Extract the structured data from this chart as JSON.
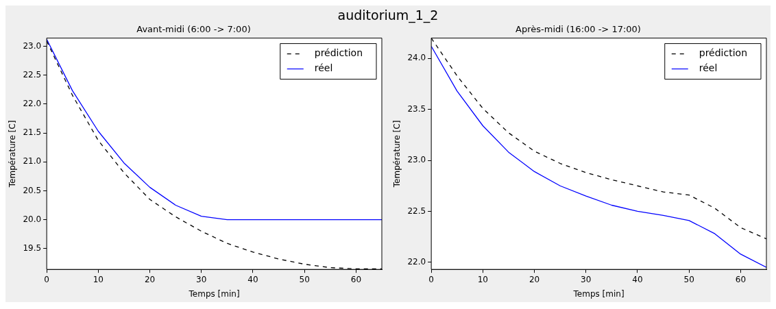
{
  "chart_data": [
    {
      "type": "line",
      "title": "Avant-midi (6:00 -> 7:00)",
      "xlabel": "Temps [min]",
      "ylabel": "Température [C]",
      "annotations": [
        "auditorium_1_2"
      ],
      "x": [
        0,
        5,
        10,
        15,
        20,
        25,
        30,
        35,
        40,
        45,
        50,
        55,
        60,
        65
      ],
      "series": [
        {
          "name": "prédiction",
          "color": "#000000",
          "line_style": "dashed",
          "values": [
            23.09,
            22.15,
            21.37,
            20.81,
            20.35,
            20.05,
            19.8,
            19.59,
            19.44,
            19.32,
            19.23,
            19.17,
            19.15,
            19.15
          ]
        },
        {
          "name": "réel",
          "color": "#0000ff",
          "line_style": "solid",
          "values": [
            23.12,
            22.23,
            21.53,
            20.98,
            20.56,
            20.25,
            20.06,
            20.0,
            20.0,
            20.0,
            20.0,
            20.0,
            20.0,
            20.0
          ]
        }
      ],
      "xlim": [
        0,
        65
      ],
      "xticks": [
        0,
        10,
        20,
        30,
        40,
        50,
        60
      ],
      "ylim": [
        19.14,
        23.14
      ],
      "yticks": [
        {
          "value": 19.5,
          "label": "19.5"
        },
        {
          "value": 20,
          "label": "20.0"
        },
        {
          "value": 20.5,
          "label": "20.5"
        },
        {
          "value": 21,
          "label": "21.0"
        },
        {
          "value": 21.5,
          "label": "21.5"
        },
        {
          "value": 22,
          "label": "22.0"
        },
        {
          "value": 22.5,
          "label": "22.5"
        },
        {
          "value": 23,
          "label": "23.0"
        }
      ],
      "legend": "top right"
    },
    {
      "type": "line",
      "title": "Après-midi (16:00 -> 17:00)",
      "xlabel": "Temps [min]",
      "ylabel": "Température [C]",
      "x": [
        0,
        5,
        10,
        15,
        20,
        25,
        30,
        35,
        40,
        45,
        50,
        55,
        60,
        65
      ],
      "series": [
        {
          "name": "prédiction",
          "color": "#000000",
          "line_style": "dashed",
          "values": [
            24.2,
            23.83,
            23.51,
            23.27,
            23.09,
            22.97,
            22.88,
            22.81,
            22.75,
            22.69,
            22.66,
            22.53,
            22.34,
            22.23
          ]
        },
        {
          "name": "réel",
          "color": "#0000ff",
          "line_style": "solid",
          "values": [
            24.12,
            23.68,
            23.34,
            23.08,
            22.89,
            22.75,
            22.65,
            22.56,
            22.5,
            22.46,
            22.41,
            22.28,
            22.08,
            21.95
          ]
        }
      ],
      "xlim": [
        0,
        65
      ],
      "xticks": [
        0,
        10,
        20,
        30,
        40,
        50,
        60
      ],
      "ylim": [
        21.93,
        24.2
      ],
      "yticks": [
        {
          "value": 22,
          "label": "22.0"
        },
        {
          "value": 22.5,
          "label": "22.5"
        },
        {
          "value": 23,
          "label": "23.0"
        },
        {
          "value": 23.5,
          "label": "23.5"
        },
        {
          "value": 24,
          "label": "24.0"
        }
      ],
      "legend": "top right"
    }
  ]
}
